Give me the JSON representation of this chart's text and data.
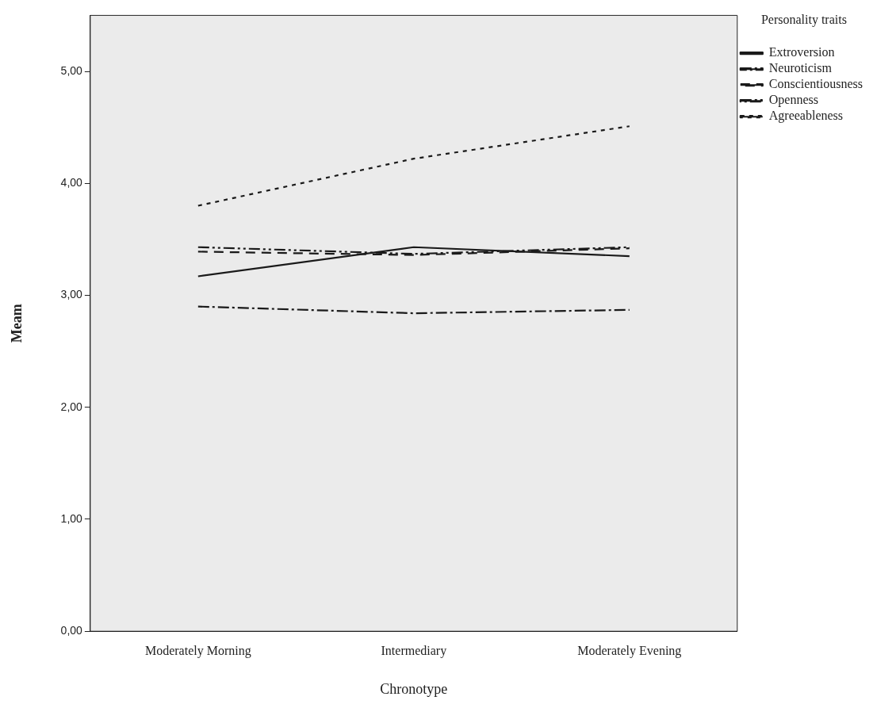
{
  "chart_data": {
    "type": "line",
    "xlabel": "Chronotype",
    "ylabel": "Meam",
    "legend_title": "Personality traits",
    "legend": "top right",
    "categories": [
      "Moderately Morning",
      "Intermediary",
      "Moderately Evening"
    ],
    "series": [
      {
        "name": "Extroversion",
        "color": "#1a1a1a",
        "line_style": "solid",
        "values": [
          3.17,
          3.43,
          3.35
        ]
      },
      {
        "name": "Neuroticism",
        "color": "#1a1a1a",
        "line_style": "dashed",
        "values": [
          2.9,
          2.84,
          2.87
        ]
      },
      {
        "name": "Conscientiousness",
        "color": "#1a1a1a",
        "line_style": "dashed",
        "values": [
          3.39,
          3.36,
          3.42
        ]
      },
      {
        "name": "Openness",
        "color": "#1a1a1a",
        "line_style": "dashed",
        "values": [
          3.43,
          3.37,
          3.43
        ]
      },
      {
        "name": "Agreeableness",
        "color": "#1a1a1a",
        "line_style": "dotted",
        "values": [
          3.8,
          4.22,
          4.51
        ]
      }
    ],
    "ylim": [
      0,
      5.5
    ],
    "yticks": [
      {
        "value": 0,
        "label": "0,00"
      },
      {
        "value": 1,
        "label": "1,00"
      },
      {
        "value": 2,
        "label": "2,00"
      },
      {
        "value": 3,
        "label": "3,00"
      },
      {
        "value": 4,
        "label": "4,00"
      },
      {
        "value": 5,
        "label": "5,00"
      }
    ],
    "grid": false,
    "marker": "none"
  }
}
